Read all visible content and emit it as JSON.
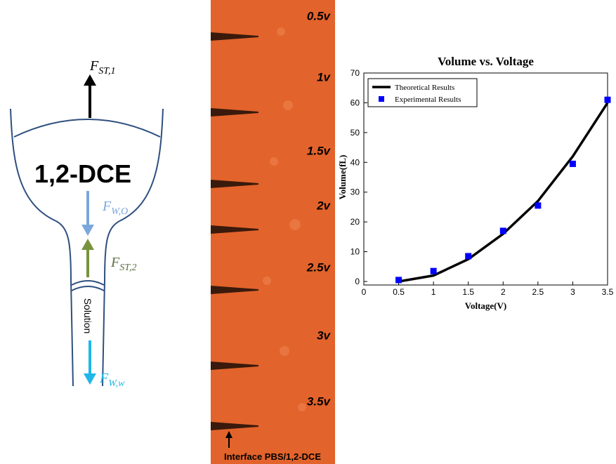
{
  "diagram": {
    "forces": [
      {
        "symbol": "F",
        "subscript": "ST,1"
      },
      {
        "symbol": "F",
        "subscript": "W,O"
      },
      {
        "symbol": "F",
        "subscript": "ST,2"
      },
      {
        "symbol": "F",
        "subscript": "W,w"
      }
    ],
    "phase_label": "1,2-DCE",
    "solution_label": "Solution"
  },
  "micrograph": {
    "voltage_labels": [
      "0.5v",
      "1v",
      "1.5v",
      "2v",
      "2.5v",
      "3v",
      "3.5v"
    ],
    "caption": "Interface PBS/1,2-DCE"
  },
  "chart_data": {
    "type": "line",
    "title": "Volume vs. Voltage",
    "x_label": "Voltage(V)",
    "y_label": "Volume(fL)",
    "xlim": [
      0,
      3.5
    ],
    "xticks": [
      0,
      0.5,
      1,
      1.5,
      2,
      2.5,
      3,
      3.5
    ],
    "ylim": [
      0,
      70
    ],
    "yticks": [
      0,
      10,
      20,
      30,
      40,
      50,
      60,
      70
    ],
    "legend": "upper-left",
    "series": [
      {
        "name": "Theoretical Results",
        "color": "#000000",
        "style": "line",
        "x": [
          0.5,
          1,
          1.5,
          2,
          2.5,
          3,
          3.5
        ],
        "values": [
          0,
          2,
          7.5,
          16,
          27,
          42,
          60
        ]
      },
      {
        "name": "Experimental Results",
        "color": "#0000ff",
        "style": "marker",
        "x": [
          0.5,
          1,
          1.5,
          2,
          2.5,
          3,
          3.5
        ],
        "values": [
          0.5,
          3.5,
          8.5,
          17,
          25.5,
          39.5,
          61
        ]
      }
    ]
  }
}
